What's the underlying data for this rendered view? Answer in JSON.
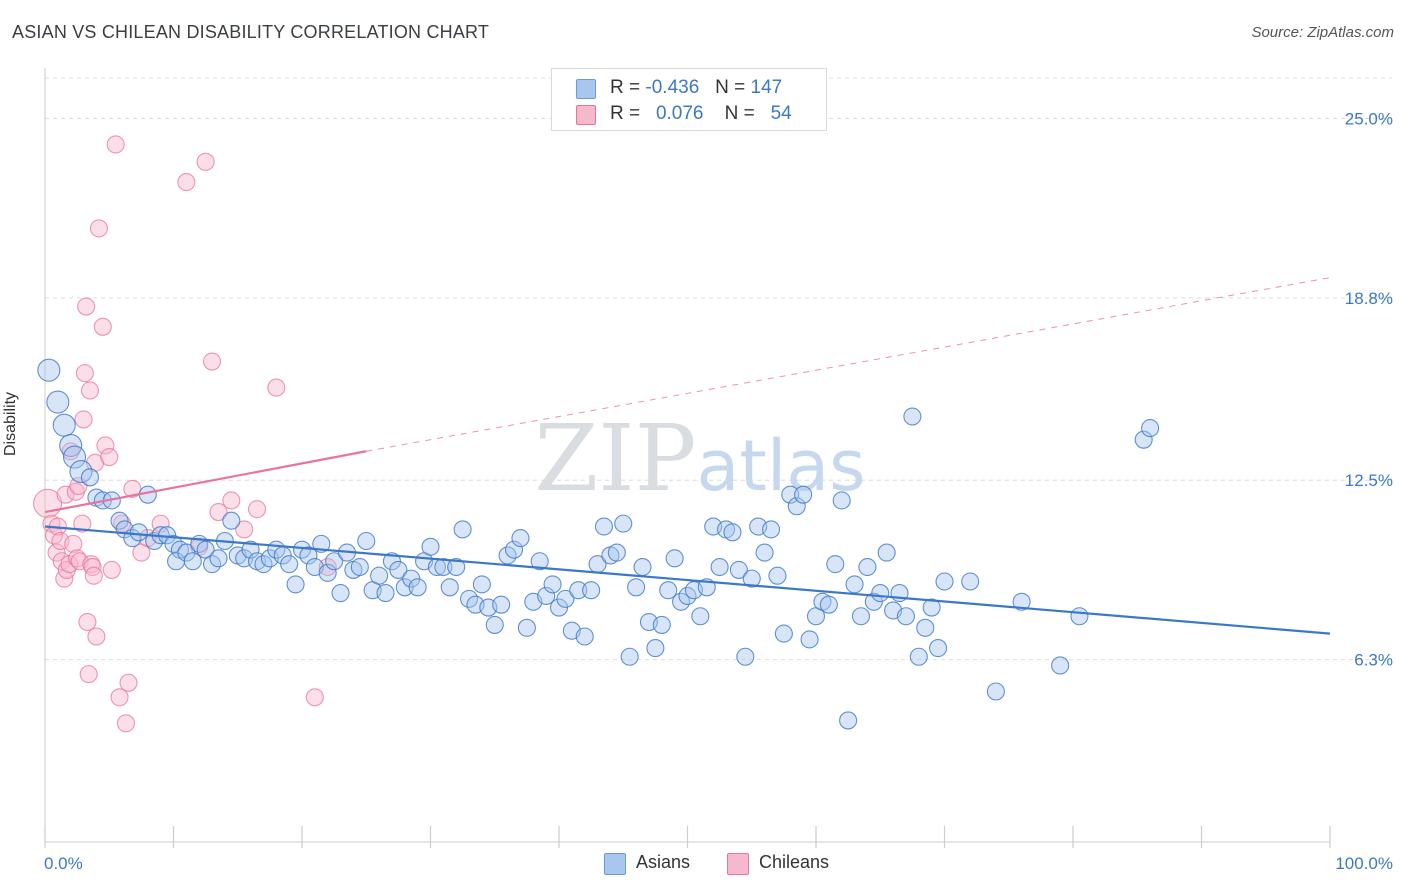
{
  "header": {
    "title": "ASIAN VS CHILEAN DISABILITY CORRELATION CHART",
    "source": "Source: ZipAtlas.com"
  },
  "watermark": {
    "part1": "ZIP",
    "part2": "atlas"
  },
  "legend_top": {
    "rows": [
      {
        "r_label": "R =",
        "r_value": "-0.436",
        "n_label": "N =",
        "n_value": "147",
        "color": "#a9c6ee"
      },
      {
        "r_label": "R =",
        "r_value": "0.076",
        "n_label": "N =",
        "n_value": "54",
        "color": "#f6b8cb"
      }
    ]
  },
  "legend_bottom": [
    {
      "label": "Asians",
      "color": "#a9c6ee"
    },
    {
      "label": "Chileans",
      "color": "#f6b8cb"
    }
  ],
  "chart_data": {
    "type": "scatter",
    "title": "ASIAN VS CHILEAN DISABILITY CORRELATION CHART",
    "xlabel": "",
    "ylabel": "Disability",
    "xlim": [
      0,
      100
    ],
    "ylim": [
      0,
      26.5
    ],
    "x_tick_labels": [
      "0.0%",
      "100.0%"
    ],
    "y_ticks": [
      6.3,
      12.5,
      18.8,
      25.0
    ],
    "y_tick_labels": [
      "6.3%",
      "12.5%",
      "18.8%",
      "25.0%"
    ],
    "grid": "horizontal dashed",
    "legend_position": "top-center and bottom",
    "colors": {
      "asians": "#3b78c8",
      "asians_fill": "#a9c6ee",
      "chileans": "#e8739c",
      "chileans_fill": "#f6b8cb",
      "tick_label": "#3b78c8"
    },
    "series": [
      {
        "name": "Asians",
        "r": -0.436,
        "n": 147,
        "trend": {
          "x": [
            0,
            100
          ],
          "y": [
            10.9,
            7.2
          ],
          "style": "solid"
        },
        "points": [
          [
            0.3,
            16.3
          ],
          [
            1,
            15.2
          ],
          [
            1.5,
            14.4
          ],
          [
            2,
            13.7
          ],
          [
            2.3,
            13.3
          ],
          [
            2.8,
            12.8
          ],
          [
            3.5,
            12.6
          ],
          [
            4,
            11.9
          ],
          [
            4.5,
            11.8
          ],
          [
            5.2,
            11.8
          ],
          [
            5.8,
            11.1
          ],
          [
            6.2,
            10.8
          ],
          [
            6.8,
            10.5
          ],
          [
            7.3,
            10.7
          ],
          [
            8,
            12.0
          ],
          [
            8.5,
            10.4
          ],
          [
            9,
            10.6
          ],
          [
            9.5,
            10.6
          ],
          [
            10,
            10.3
          ],
          [
            10.5,
            10.1
          ],
          [
            10.2,
            9.7
          ],
          [
            11,
            10.0
          ],
          [
            11.5,
            9.7
          ],
          [
            12,
            10.3
          ],
          [
            12.5,
            10.1
          ],
          [
            13,
            9.6
          ],
          [
            13.5,
            9.8
          ],
          [
            14,
            10.4
          ],
          [
            14.5,
            11.1
          ],
          [
            15,
            9.9
          ],
          [
            15.5,
            9.8
          ],
          [
            16,
            10.1
          ],
          [
            16.5,
            9.7
          ],
          [
            17,
            9.6
          ],
          [
            17.5,
            9.8
          ],
          [
            18,
            10.1
          ],
          [
            18.5,
            9.9
          ],
          [
            19,
            9.6
          ],
          [
            19.5,
            8.9
          ],
          [
            20,
            10.1
          ],
          [
            20.5,
            9.9
          ],
          [
            21,
            9.5
          ],
          [
            21.5,
            10.3
          ],
          [
            22,
            9.3
          ],
          [
            22.5,
            9.7
          ],
          [
            23,
            8.6
          ],
          [
            23.5,
            10.0
          ],
          [
            24,
            9.4
          ],
          [
            24.5,
            9.5
          ],
          [
            25,
            10.4
          ],
          [
            25.5,
            8.7
          ],
          [
            26,
            9.2
          ],
          [
            26.5,
            8.6
          ],
          [
            27,
            9.7
          ],
          [
            27.5,
            9.4
          ],
          [
            28,
            8.8
          ],
          [
            28.5,
            9.1
          ],
          [
            29,
            8.8
          ],
          [
            29.5,
            9.7
          ],
          [
            30,
            10.2
          ],
          [
            30.5,
            9.5
          ],
          [
            31,
            9.5
          ],
          [
            31.5,
            8.8
          ],
          [
            32,
            9.5
          ],
          [
            32.5,
            10.8
          ],
          [
            33,
            8.4
          ],
          [
            33.5,
            8.2
          ],
          [
            34,
            8.9
          ],
          [
            34.5,
            8.1
          ],
          [
            35,
            7.5
          ],
          [
            35.5,
            8.2
          ],
          [
            36,
            9.9
          ],
          [
            36.5,
            10.1
          ],
          [
            37,
            10.5
          ],
          [
            37.5,
            7.4
          ],
          [
            38,
            8.3
          ],
          [
            38.5,
            9.7
          ],
          [
            39,
            8.5
          ],
          [
            39.5,
            8.9
          ],
          [
            40,
            8.1
          ],
          [
            40.5,
            8.4
          ],
          [
            41,
            7.3
          ],
          [
            41.5,
            8.7
          ],
          [
            42,
            7.1
          ],
          [
            42.5,
            8.7
          ],
          [
            43,
            9.6
          ],
          [
            43.5,
            10.9
          ],
          [
            44,
            9.9
          ],
          [
            44.5,
            10.0
          ],
          [
            45,
            11.0
          ],
          [
            45.5,
            6.4
          ],
          [
            46,
            8.8
          ],
          [
            46.5,
            9.5
          ],
          [
            47,
            7.6
          ],
          [
            47.5,
            6.7
          ],
          [
            48,
            7.5
          ],
          [
            48.5,
            8.7
          ],
          [
            49,
            9.8
          ],
          [
            49.5,
            8.3
          ],
          [
            50,
            8.5
          ],
          [
            50.5,
            8.7
          ],
          [
            51,
            7.8
          ],
          [
            51.5,
            8.8
          ],
          [
            52,
            10.9
          ],
          [
            52.5,
            9.5
          ],
          [
            53,
            10.8
          ],
          [
            53.5,
            10.7
          ],
          [
            54,
            9.4
          ],
          [
            54.5,
            6.4
          ],
          [
            55,
            9.1
          ],
          [
            55.5,
            10.9
          ],
          [
            56,
            10.0
          ],
          [
            56.5,
            10.8
          ],
          [
            57,
            9.2
          ],
          [
            57.5,
            7.2
          ],
          [
            58,
            12.0
          ],
          [
            58.5,
            11.6
          ],
          [
            59,
            12.0
          ],
          [
            59.5,
            7.0
          ],
          [
            60,
            7.8
          ],
          [
            60.5,
            8.3
          ],
          [
            61,
            8.2
          ],
          [
            61.5,
            9.6
          ],
          [
            62,
            11.8
          ],
          [
            62.5,
            4.2
          ],
          [
            63,
            8.9
          ],
          [
            63.5,
            7.8
          ],
          [
            64,
            9.5
          ],
          [
            64.5,
            8.3
          ],
          [
            65,
            8.6
          ],
          [
            65.5,
            10.0
          ],
          [
            66,
            8.0
          ],
          [
            66.5,
            8.6
          ],
          [
            67,
            7.8
          ],
          [
            67.5,
            14.7
          ],
          [
            68,
            6.4
          ],
          [
            68.5,
            7.4
          ],
          [
            69,
            8.1
          ],
          [
            69.5,
            6.7
          ],
          [
            70,
            9.0
          ],
          [
            72,
            9.0
          ],
          [
            74,
            5.2
          ],
          [
            76,
            8.3
          ],
          [
            79,
            6.1
          ],
          [
            80.5,
            7.8
          ],
          [
            85.5,
            13.9
          ],
          [
            86,
            14.3
          ]
        ]
      },
      {
        "name": "Chileans",
        "r": 0.076,
        "n": 54,
        "trend": {
          "x": [
            0,
            25,
            100
          ],
          "y": [
            11.4,
            13.5,
            19.5
          ],
          "style": "solid to 25 then dashed"
        },
        "points": [
          [
            0.2,
            11.7
          ],
          [
            0.5,
            11.0
          ],
          [
            0.7,
            10.6
          ],
          [
            0.9,
            10.0
          ],
          [
            1.0,
            10.9
          ],
          [
            1.2,
            10.4
          ],
          [
            1.3,
            9.7
          ],
          [
            1.5,
            9.1
          ],
          [
            1.6,
            12.0
          ],
          [
            1.7,
            9.4
          ],
          [
            1.9,
            9.6
          ],
          [
            2.0,
            13.5
          ],
          [
            2.2,
            10.3
          ],
          [
            2.4,
            12.1
          ],
          [
            2.5,
            9.8
          ],
          [
            2.6,
            12.3
          ],
          [
            2.7,
            9.7
          ],
          [
            2.9,
            11.0
          ],
          [
            3.0,
            14.6
          ],
          [
            3.1,
            16.2
          ],
          [
            3.2,
            18.5
          ],
          [
            3.3,
            7.6
          ],
          [
            3.4,
            5.8
          ],
          [
            3.5,
            15.6
          ],
          [
            3.6,
            9.6
          ],
          [
            3.7,
            9.5
          ],
          [
            3.8,
            9.2
          ],
          [
            3.9,
            13.1
          ],
          [
            4.0,
            7.1
          ],
          [
            4.2,
            21.2
          ],
          [
            4.5,
            17.8
          ],
          [
            4.7,
            13.7
          ],
          [
            5.0,
            13.3
          ],
          [
            5.2,
            9.4
          ],
          [
            5.5,
            24.1
          ],
          [
            5.8,
            5.0
          ],
          [
            6.0,
            11.0
          ],
          [
            6.3,
            4.1
          ],
          [
            6.5,
            5.5
          ],
          [
            6.8,
            12.2
          ],
          [
            7.5,
            10.0
          ],
          [
            8.0,
            10.5
          ],
          [
            9.0,
            11.0
          ],
          [
            11.0,
            22.8
          ],
          [
            12.0,
            10.2
          ],
          [
            12.5,
            23.5
          ],
          [
            13.0,
            16.6
          ],
          [
            13.5,
            11.4
          ],
          [
            14.5,
            11.8
          ],
          [
            15.5,
            10.8
          ],
          [
            16.5,
            11.5
          ],
          [
            18.0,
            15.7
          ],
          [
            21.0,
            5.0
          ],
          [
            22.0,
            9.5
          ]
        ]
      }
    ]
  }
}
